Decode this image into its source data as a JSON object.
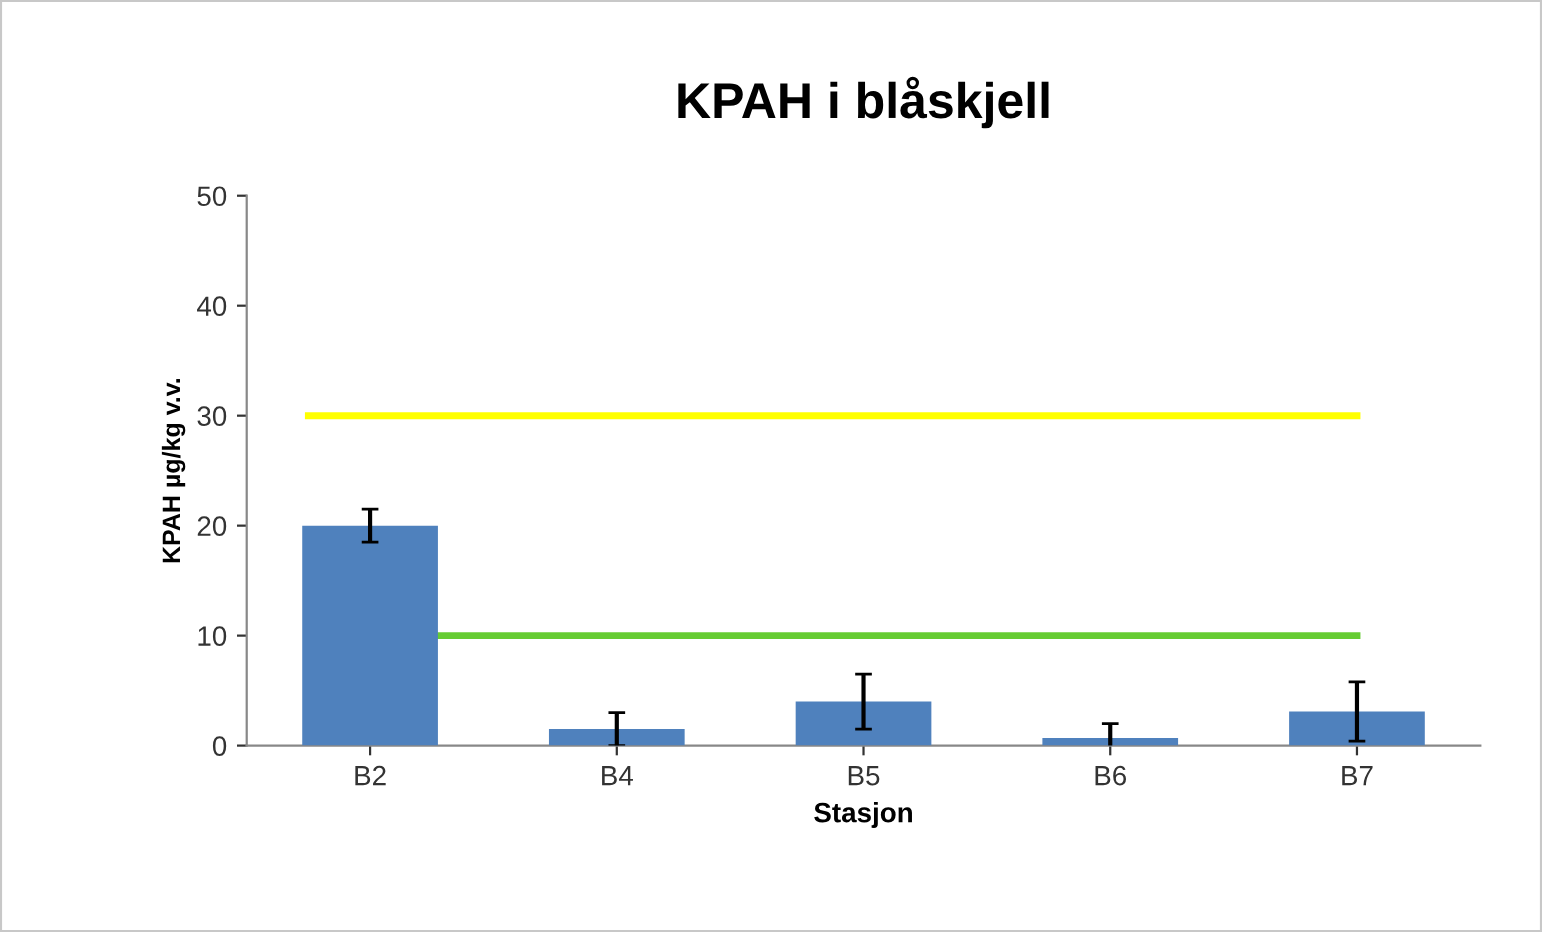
{
  "chart_data": {
    "type": "bar",
    "title": "KPAH i blåskjell",
    "xlabel": "Stasjon",
    "ylabel": "KPAH µg/kg v.v.",
    "categories": [
      "B2",
      "B4",
      "B5",
      "B6",
      "B7"
    ],
    "values": [
      20,
      1.5,
      4,
      0.7,
      3.1
    ],
    "errors": [
      1.5,
      1.5,
      2.5,
      1.3,
      2.7
    ],
    "color": "#4f81bd",
    "ylim": [
      0,
      50
    ],
    "yticks": [
      0,
      10,
      20,
      30,
      40,
      50
    ],
    "ref_lines": [
      {
        "axis": "y",
        "value": 30,
        "color": "#ffff00"
      },
      {
        "axis": "y",
        "value": 10,
        "color": "#66cc33"
      }
    ],
    "grid": false,
    "legend": false
  }
}
